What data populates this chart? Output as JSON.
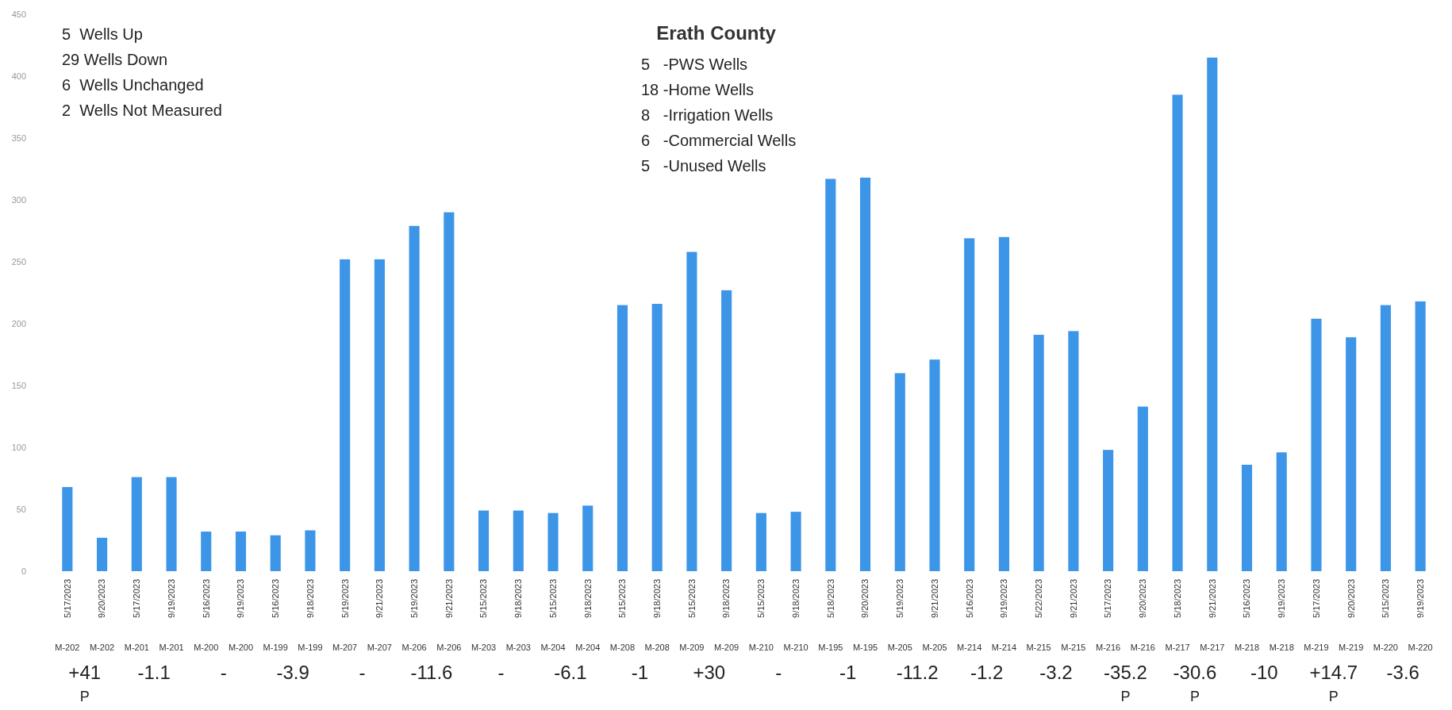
{
  "chart_data": {
    "type": "bar",
    "title": "Erath County",
    "categories": [
      "5/17/2023",
      "9/20/2023",
      "5/17/2023",
      "9/19/2023",
      "5/16/2023",
      "9/19/2023",
      "5/16/2023",
      "9/18/2023",
      "5/19/2023",
      "9/21/2023",
      "5/19/2023",
      "9/21/2023",
      "5/15/2023",
      "9/18/2023",
      "5/15/2023",
      "9/18/2023",
      "5/15/2023",
      "9/18/2023",
      "5/15/2023",
      "9/18/2023",
      "5/15/2023",
      "9/18/2023",
      "5/18/2023",
      "9/20/2023",
      "5/19/2023",
      "9/21/2023",
      "5/16/2023",
      "9/19/2023",
      "5/22/2023",
      "9/21/2023",
      "5/17/2023",
      "9/20/2023",
      "5/18/2023",
      "9/21/2023",
      "5/16/2023",
      "9/19/2023",
      "5/17/2023",
      "9/20/2023",
      "5/15/2023",
      "9/19/2023"
    ],
    "values": [
      68,
      27,
      76,
      76,
      32,
      32,
      29,
      33,
      252,
      252,
      279,
      290,
      49,
      49,
      47,
      53,
      215,
      216,
      258,
      227,
      47,
      48,
      317,
      318,
      160,
      171,
      269,
      270,
      191,
      194,
      98,
      133,
      385,
      415,
      86,
      96,
      204,
      189,
      215,
      218
    ],
    "color": "#3d95e8",
    "ylim": [
      0,
      450
    ],
    "yticks": [
      0,
      50,
      100,
      150,
      200,
      250,
      300,
      350,
      400,
      450
    ],
    "grid": false,
    "annotations": [
      "5  Wells Up\n29 Wells Down\n6  Wells Unchanged\n2  Wells Not Measured",
      "5   -PWS Wells\n18 -Home Wells\n8   -Irrigation Wells\n6   -Commercial Wells\n5   -Unused Wells",
      "M-202",
      "M-202",
      "M-201",
      "M-201",
      "M-200",
      "M-200",
      "M-199",
      "M-199",
      "M-207",
      "M-207",
      "M-206",
      "M-206",
      "M-203",
      "M-203",
      "M-204",
      "M-204",
      "M-208",
      "M-208",
      "M-209",
      "M-209",
      "M-210",
      "M-210",
      "M-195",
      "M-195",
      "M-205",
      "M-205",
      "M-214",
      "M-214",
      "M-215",
      "M-215",
      "M-216",
      "M-216",
      "M-217",
      "M-217",
      "M-218",
      "M-218",
      "M-219",
      "M-219",
      "M-220",
      "M-220",
      "+41\nP",
      "-1.1",
      "-",
      "-3.9",
      "-",
      "-11.6",
      "-",
      "-6.1",
      "-1",
      "+30",
      "-",
      "-1",
      "-11.2",
      "-1.2",
      "-3.2",
      "-35.2\nP",
      "-30.6\nP",
      "-10",
      "+14.7\nP",
      "-3.6"
    ]
  }
}
